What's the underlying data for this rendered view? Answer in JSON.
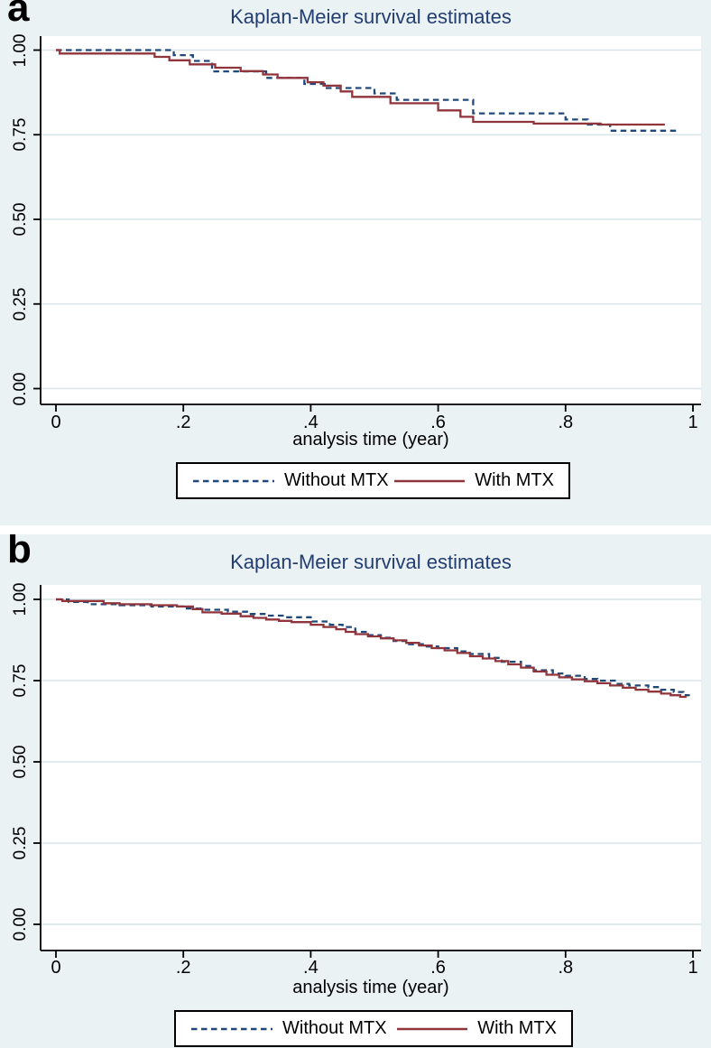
{
  "colors": {
    "background": "#eaf2f3",
    "plot_background": "#ffffff",
    "gridline": "#d9e5e8",
    "axis": "#000000",
    "title_text": "#233d73",
    "tick_text": "#000000",
    "legend_border": "#000000",
    "legend_background": "#ffffff",
    "without_mtx_line": "#20497a",
    "with_mtx_line": "#90353b"
  },
  "chart_data": [
    {
      "type": "line",
      "subtype": "kaplan-meier-step",
      "panel_label": "a",
      "title": "Kaplan-Meier survival estimates",
      "xlabel": "analysis time (year)",
      "ylabel": "",
      "xlim": [
        0,
        1
      ],
      "ylim": [
        0,
        1
      ],
      "grid": "horizontal",
      "legend_position": "bottom-center",
      "x_ticks": {
        "values": [
          0,
          0.2,
          0.4,
          0.6,
          0.8,
          1
        ],
        "labels": [
          "0",
          ".2",
          ".4",
          ".6",
          ".8",
          "1"
        ]
      },
      "y_ticks": {
        "values": [
          0,
          0.25,
          0.5,
          0.75,
          1
        ],
        "labels": [
          "0.00",
          "0.25",
          "0.50",
          "0.75",
          "1.00"
        ]
      },
      "series": [
        {
          "name": "Without MTX",
          "style": "dashed",
          "color": "#20497a",
          "steps": [
            [
              0,
              1.0
            ],
            [
              0.185,
              0.985
            ],
            [
              0.215,
              0.968
            ],
            [
              0.245,
              0.937
            ],
            [
              0.33,
              0.918
            ],
            [
              0.39,
              0.9
            ],
            [
              0.425,
              0.888
            ],
            [
              0.5,
              0.872
            ],
            [
              0.535,
              0.853
            ],
            [
              0.655,
              0.813
            ],
            [
              0.8,
              0.795
            ],
            [
              0.835,
              0.78
            ],
            [
              0.87,
              0.762
            ],
            [
              0.977,
              0.762
            ]
          ]
        },
        {
          "name": "With MTX",
          "style": "solid",
          "color": "#90353b",
          "steps": [
            [
              0,
              1.0
            ],
            [
              0.006,
              0.99
            ],
            [
              0.155,
              0.98
            ],
            [
              0.178,
              0.97
            ],
            [
              0.21,
              0.958
            ],
            [
              0.25,
              0.948
            ],
            [
              0.29,
              0.938
            ],
            [
              0.325,
              0.928
            ],
            [
              0.348,
              0.918
            ],
            [
              0.395,
              0.905
            ],
            [
              0.42,
              0.895
            ],
            [
              0.447,
              0.878
            ],
            [
              0.465,
              0.862
            ],
            [
              0.525,
              0.843
            ],
            [
              0.6,
              0.822
            ],
            [
              0.635,
              0.803
            ],
            [
              0.655,
              0.788
            ],
            [
              0.75,
              0.783
            ],
            [
              0.855,
              0.78
            ],
            [
              0.956,
              0.78
            ]
          ]
        }
      ]
    },
    {
      "type": "line",
      "subtype": "kaplan-meier-step",
      "panel_label": "b",
      "title": "Kaplan-Meier survival estimates",
      "xlabel": "analysis time (year)",
      "ylabel": "",
      "xlim": [
        0,
        1
      ],
      "ylim": [
        0,
        1
      ],
      "grid": "horizontal",
      "legend_position": "bottom-center",
      "x_ticks": {
        "values": [
          0,
          0.2,
          0.4,
          0.6,
          0.8,
          1
        ],
        "labels": [
          "0",
          ".2",
          ".4",
          ".6",
          ".8",
          "1"
        ]
      },
      "y_ticks": {
        "values": [
          0,
          0.25,
          0.5,
          0.75,
          1
        ],
        "labels": [
          "0.00",
          "0.25",
          "0.50",
          "0.75",
          "1.00"
        ]
      },
      "series": [
        {
          "name": "Without MTX",
          "style": "dashed",
          "color": "#20497a",
          "steps": [
            [
              0,
              1.0
            ],
            [
              0.02,
              0.992
            ],
            [
              0.05,
              0.985
            ],
            [
              0.1,
              0.982
            ],
            [
              0.15,
              0.978
            ],
            [
              0.2,
              0.972
            ],
            [
              0.23,
              0.968
            ],
            [
              0.27,
              0.962
            ],
            [
              0.3,
              0.955
            ],
            [
              0.33,
              0.95
            ],
            [
              0.36,
              0.945
            ],
            [
              0.4,
              0.932
            ],
            [
              0.43,
              0.922
            ],
            [
              0.45,
              0.915
            ],
            [
              0.47,
              0.9
            ],
            [
              0.49,
              0.89
            ],
            [
              0.51,
              0.882
            ],
            [
              0.53,
              0.872
            ],
            [
              0.55,
              0.862
            ],
            [
              0.58,
              0.855
            ],
            [
              0.6,
              0.85
            ],
            [
              0.63,
              0.84
            ],
            [
              0.65,
              0.832
            ],
            [
              0.68,
              0.82
            ],
            [
              0.7,
              0.808
            ],
            [
              0.73,
              0.795
            ],
            [
              0.75,
              0.782
            ],
            [
              0.78,
              0.772
            ],
            [
              0.8,
              0.765
            ],
            [
              0.83,
              0.755
            ],
            [
              0.85,
              0.75
            ],
            [
              0.88,
              0.74
            ],
            [
              0.9,
              0.735
            ],
            [
              0.93,
              0.73
            ],
            [
              0.95,
              0.722
            ],
            [
              0.97,
              0.715
            ],
            [
              0.985,
              0.705
            ],
            [
              0.995,
              0.705
            ]
          ]
        },
        {
          "name": "With MTX",
          "style": "solid",
          "color": "#90353b",
          "steps": [
            [
              0,
              1.0
            ],
            [
              0.01,
              0.995
            ],
            [
              0.075,
              0.988
            ],
            [
              0.1,
              0.985
            ],
            [
              0.15,
              0.982
            ],
            [
              0.19,
              0.978
            ],
            [
              0.215,
              0.97
            ],
            [
              0.23,
              0.96
            ],
            [
              0.26,
              0.956
            ],
            [
              0.29,
              0.948
            ],
            [
              0.31,
              0.943
            ],
            [
              0.33,
              0.938
            ],
            [
              0.35,
              0.934
            ],
            [
              0.37,
              0.93
            ],
            [
              0.4,
              0.922
            ],
            [
              0.42,
              0.915
            ],
            [
              0.44,
              0.908
            ],
            [
              0.455,
              0.9
            ],
            [
              0.47,
              0.893
            ],
            [
              0.49,
              0.886
            ],
            [
              0.51,
              0.88
            ],
            [
              0.53,
              0.874
            ],
            [
              0.55,
              0.866
            ],
            [
              0.57,
              0.858
            ],
            [
              0.59,
              0.85
            ],
            [
              0.61,
              0.843
            ],
            [
              0.63,
              0.835
            ],
            [
              0.65,
              0.825
            ],
            [
              0.67,
              0.818
            ],
            [
              0.69,
              0.81
            ],
            [
              0.71,
              0.8
            ],
            [
              0.73,
              0.79
            ],
            [
              0.75,
              0.778
            ],
            [
              0.77,
              0.768
            ],
            [
              0.79,
              0.76
            ],
            [
              0.81,
              0.754
            ],
            [
              0.83,
              0.748
            ],
            [
              0.85,
              0.742
            ],
            [
              0.87,
              0.735
            ],
            [
              0.89,
              0.728
            ],
            [
              0.91,
              0.722
            ],
            [
              0.93,
              0.716
            ],
            [
              0.95,
              0.71
            ],
            [
              0.965,
              0.705
            ],
            [
              0.98,
              0.7
            ],
            [
              0.99,
              0.7
            ]
          ]
        }
      ]
    }
  ]
}
